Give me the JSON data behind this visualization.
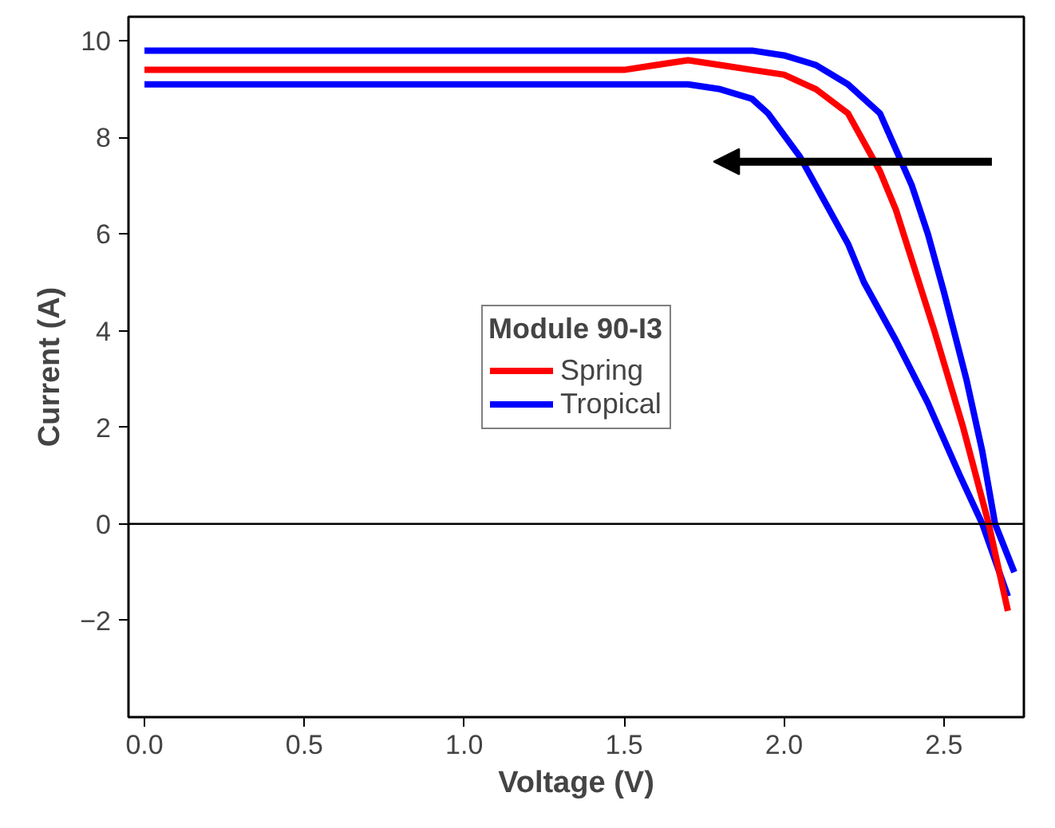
{
  "chart_data": {
    "type": "line",
    "xlabel": "Voltage (V)",
    "ylabel": "Current (A)",
    "legend_title": "Module 90-I3",
    "series": [
      {
        "name": "Tropical",
        "color": "#0000ff",
        "x": [
          0,
          0.3,
          0.6,
          0.9,
          1.2,
          1.5,
          1.7,
          1.9,
          2.0,
          2.1,
          2.2,
          2.3,
          2.4,
          2.45,
          2.5,
          2.57,
          2.62,
          2.66,
          2.72
        ],
        "values": [
          9.8,
          9.8,
          9.8,
          9.8,
          9.8,
          9.8,
          9.8,
          9.8,
          9.7,
          9.5,
          9.1,
          8.5,
          7.0,
          6.0,
          4.8,
          3.0,
          1.5,
          0.0,
          -1.0
        ]
      },
      {
        "color": "#0000ff",
        "x": [
          0,
          0.3,
          0.6,
          0.9,
          1.2,
          1.5,
          1.7,
          1.8,
          1.9,
          1.95,
          2.05,
          2.1,
          2.2,
          2.25,
          2.35,
          2.45,
          2.55,
          2.62,
          2.7
        ],
        "values": [
          9.1,
          9.1,
          9.1,
          9.1,
          9.1,
          9.1,
          9.1,
          9.0,
          8.8,
          8.5,
          7.6,
          7.0,
          5.8,
          5.0,
          3.8,
          2.5,
          1.0,
          0.0,
          -1.5
        ]
      },
      {
        "name": "Spring",
        "color": "#ff0000",
        "x": [
          0,
          0.3,
          0.6,
          0.9,
          1.2,
          1.5,
          1.6,
          1.7,
          1.8,
          1.9,
          2.0,
          2.1,
          2.2,
          2.3,
          2.35,
          2.47,
          2.56,
          2.64,
          2.7
        ],
        "values": [
          9.4,
          9.4,
          9.4,
          9.4,
          9.4,
          9.4,
          9.5,
          9.6,
          9.5,
          9.4,
          9.3,
          9.0,
          8.5,
          7.3,
          6.5,
          4.0,
          2.0,
          0.0,
          -1.8
        ]
      }
    ],
    "xlim": [
      -0.05,
      2.75
    ],
    "ylim": [
      -4,
      10.5
    ],
    "xticks": [
      {
        "value": 0,
        "label": "0.0"
      },
      0.5,
      {
        "value": 1,
        "label": "1.0"
      },
      1.5,
      {
        "value": 2,
        "label": "2.0"
      },
      2.5
    ],
    "yticks": [
      -2,
      0,
      2,
      4,
      6,
      8,
      10
    ],
    "ref_lines": [
      {
        "axis": "y",
        "value": 0,
        "color": "#000000"
      }
    ],
    "legend": "center",
    "grid": false,
    "line_style": "solid",
    "marker": "none"
  }
}
